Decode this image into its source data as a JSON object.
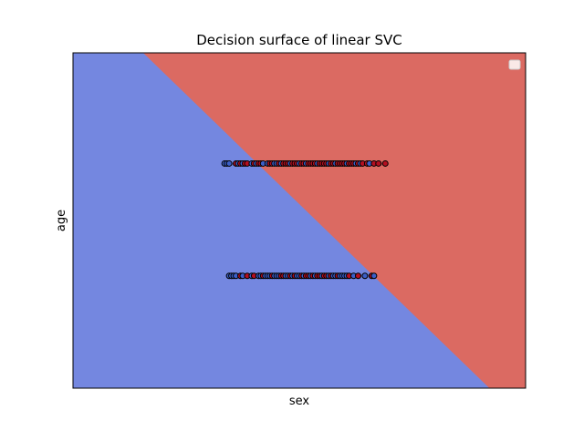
{
  "chart_data": {
    "type": "scatter",
    "title": "Decision surface of linear SVC",
    "xlabel": "sex",
    "ylabel": "age",
    "xlim": [
      0,
      1
    ],
    "ylim": [
      0,
      1
    ],
    "ticks_visible": false,
    "legend": {
      "placement": "top-right",
      "entries": []
    },
    "decision_boundary": {
      "x_at_top": 0.155,
      "x_at_bottom": 0.92
    },
    "regions": [
      {
        "name": "class_0",
        "color": "#7487e0"
      },
      {
        "name": "class_1",
        "color": "#db6a62"
      }
    ],
    "point_colors": {
      "class_0": "#3b5fc8",
      "class_1": "#b40f20"
    },
    "series": [
      {
        "y": 0.67,
        "x": [
          0.335,
          0.34,
          0.345,
          0.36,
          0.365,
          0.37,
          0.375,
          0.38,
          0.385,
          0.395,
          0.4,
          0.405,
          0.41,
          0.415,
          0.42,
          0.43,
          0.435,
          0.44,
          0.445,
          0.45,
          0.455,
          0.46,
          0.465,
          0.47,
          0.475,
          0.48,
          0.485,
          0.49,
          0.495,
          0.5,
          0.505,
          0.51,
          0.515,
          0.52,
          0.525,
          0.53,
          0.535,
          0.54,
          0.545,
          0.55,
          0.555,
          0.56,
          0.565,
          0.57,
          0.575,
          0.58,
          0.585,
          0.59,
          0.595,
          0.6,
          0.605,
          0.61,
          0.615,
          0.62,
          0.625,
          0.63,
          0.635,
          0.64,
          0.65,
          0.655,
          0.665,
          0.675,
          0.69
        ],
        "classes": [
          0,
          0,
          0,
          1,
          0,
          1,
          0,
          1,
          1,
          0,
          1,
          0,
          1,
          1,
          0,
          0,
          1,
          1,
          0,
          0,
          1,
          0,
          1,
          1,
          1,
          0,
          1,
          1,
          1,
          0,
          1,
          1,
          0,
          1,
          1,
          1,
          1,
          0,
          1,
          1,
          1,
          1,
          0,
          1,
          1,
          0,
          1,
          1,
          1,
          1,
          0,
          1,
          1,
          1,
          0,
          1,
          0,
          1,
          1,
          0,
          1,
          1,
          1
        ]
      },
      {
        "y": 0.335,
        "x": [
          0.345,
          0.35,
          0.355,
          0.36,
          0.37,
          0.375,
          0.385,
          0.395,
          0.4,
          0.41,
          0.415,
          0.42,
          0.425,
          0.43,
          0.435,
          0.44,
          0.445,
          0.45,
          0.455,
          0.46,
          0.465,
          0.47,
          0.475,
          0.48,
          0.485,
          0.49,
          0.495,
          0.5,
          0.505,
          0.51,
          0.515,
          0.52,
          0.525,
          0.53,
          0.535,
          0.54,
          0.545,
          0.55,
          0.555,
          0.56,
          0.565,
          0.57,
          0.575,
          0.58,
          0.585,
          0.59,
          0.595,
          0.6,
          0.605,
          0.61,
          0.62,
          0.63,
          0.645,
          0.66,
          0.665
        ],
        "classes": [
          0,
          0,
          0,
          0,
          1,
          0,
          1,
          0,
          1,
          0,
          0,
          1,
          0,
          0,
          0,
          1,
          0,
          0,
          0,
          1,
          1,
          0,
          0,
          1,
          0,
          1,
          0,
          0,
          1,
          0,
          1,
          1,
          0,
          1,
          0,
          1,
          1,
          0,
          1,
          1,
          0,
          1,
          0,
          0,
          1,
          0,
          0,
          0,
          0,
          1,
          0,
          1,
          0,
          1,
          0
        ]
      }
    ]
  }
}
